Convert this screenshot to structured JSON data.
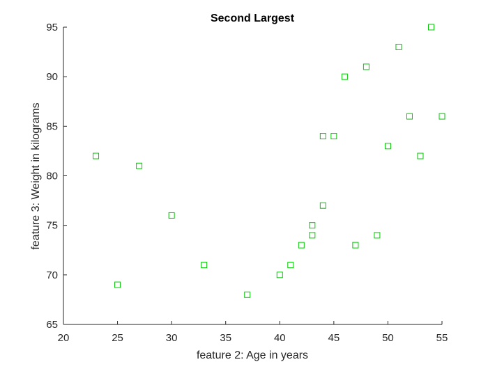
{
  "chart_data": {
    "type": "scatter",
    "title": "Second Largest",
    "xlabel": "feature 2: Age in years",
    "ylabel": "feature 3: Weight in kilograms",
    "xlim": [
      20,
      55
    ],
    "ylim": [
      65,
      95
    ],
    "xticks": [
      20,
      25,
      30,
      35,
      40,
      45,
      50,
      55
    ],
    "yticks": [
      65,
      70,
      75,
      80,
      85,
      90,
      95
    ],
    "marker": "square",
    "color": "#00c800",
    "grid": false,
    "points": [
      {
        "x": 23,
        "y": 82
      },
      {
        "x": 25,
        "y": 69
      },
      {
        "x": 27,
        "y": 81
      },
      {
        "x": 30,
        "y": 76
      },
      {
        "x": 33,
        "y": 71
      },
      {
        "x": 37,
        "y": 68
      },
      {
        "x": 40,
        "y": 70
      },
      {
        "x": 41,
        "y": 71
      },
      {
        "x": 42,
        "y": 73
      },
      {
        "x": 43,
        "y": 74
      },
      {
        "x": 43,
        "y": 75
      },
      {
        "x": 44,
        "y": 77
      },
      {
        "x": 44,
        "y": 84
      },
      {
        "x": 45,
        "y": 84
      },
      {
        "x": 46,
        "y": 90
      },
      {
        "x": 47,
        "y": 73
      },
      {
        "x": 48,
        "y": 91
      },
      {
        "x": 49,
        "y": 74
      },
      {
        "x": 50,
        "y": 83
      },
      {
        "x": 51,
        "y": 93
      },
      {
        "x": 52,
        "y": 86
      },
      {
        "x": 53,
        "y": 82
      },
      {
        "x": 54,
        "y": 95
      },
      {
        "x": 55,
        "y": 86
      }
    ]
  }
}
